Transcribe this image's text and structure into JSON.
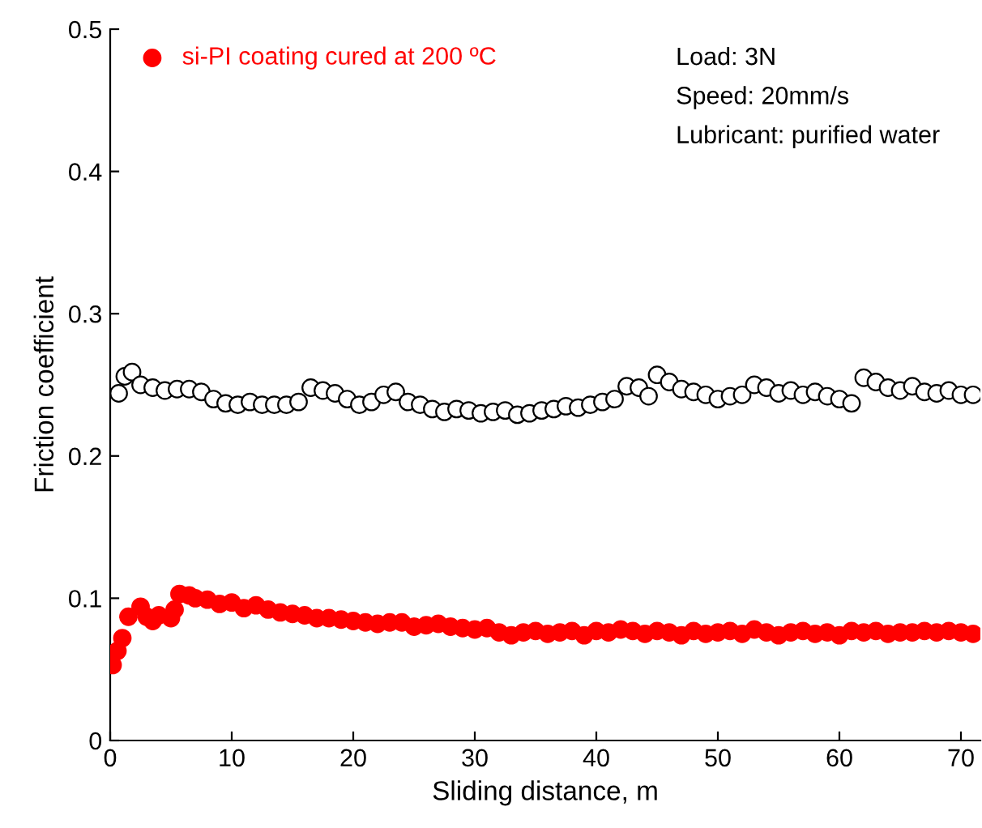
{
  "chart_data": {
    "type": "scatter",
    "xlabel": "Sliding distance, m",
    "ylabel": "Friction coefficient",
    "xlim": [
      0,
      71.6
    ],
    "ylim": [
      0,
      0.5
    ],
    "xticks": [
      0,
      10,
      20,
      30,
      40,
      50,
      60,
      70
    ],
    "yticks": [
      0,
      0.1,
      0.2,
      0.3,
      0.4,
      0.5
    ],
    "grid": false,
    "legend": "top left",
    "marker": "circle",
    "annotations": [
      "Load: 3N",
      "Speed: 20mm/s",
      "Lubricant: purified water"
    ],
    "series": [
      {
        "name": "si-PI coating cured at 200 ºC",
        "color": "#ff0000",
        "x": [
          0.2,
          0.6,
          1,
          1.5,
          2.5,
          3,
          3.5,
          4,
          5,
          5.3,
          5.7,
          6.5,
          7,
          8,
          9,
          10,
          11,
          12,
          13,
          14,
          15,
          16,
          17,
          18,
          19,
          20,
          21,
          22,
          23,
          24,
          25,
          26,
          27,
          28,
          29,
          30,
          31,
          32,
          33,
          34,
          35,
          36,
          37,
          38,
          39,
          40,
          41,
          42,
          43,
          44,
          45,
          46,
          47,
          48,
          49,
          50,
          51,
          52,
          53,
          54,
          55,
          56,
          57,
          58,
          59,
          60,
          61,
          62,
          63,
          64,
          65,
          66,
          67,
          68,
          69,
          70,
          71
        ],
        "values": [
          0.053,
          0.063,
          0.072,
          0.087,
          0.094,
          0.087,
          0.084,
          0.088,
          0.086,
          0.092,
          0.103,
          0.102,
          0.1,
          0.099,
          0.096,
          0.097,
          0.093,
          0.095,
          0.092,
          0.09,
          0.089,
          0.088,
          0.086,
          0.086,
          0.085,
          0.084,
          0.083,
          0.082,
          0.083,
          0.083,
          0.08,
          0.081,
          0.082,
          0.08,
          0.079,
          0.078,
          0.079,
          0.076,
          0.074,
          0.076,
          0.077,
          0.075,
          0.076,
          0.077,
          0.074,
          0.077,
          0.076,
          0.078,
          0.077,
          0.075,
          0.077,
          0.076,
          0.074,
          0.077,
          0.075,
          0.076,
          0.077,
          0.075,
          0.078,
          0.076,
          0.074,
          0.076,
          0.077,
          0.075,
          0.076,
          0.074,
          0.077,
          0.076,
          0.077,
          0.075,
          0.076,
          0.076,
          0.077,
          0.076,
          0.077,
          0.076,
          0.075
        ]
      },
      {
        "color": "#000000",
        "x": [
          0.7,
          1.2,
          1.8,
          2.5,
          3.5,
          4.5,
          5.5,
          6.5,
          7.5,
          8.5,
          9.5,
          10.5,
          11.5,
          12.5,
          13.5,
          14.5,
          15.5,
          16.5,
          17.5,
          18.5,
          19.5,
          20.5,
          21.5,
          22.5,
          23.5,
          24.5,
          25.5,
          26.5,
          27.5,
          28.5,
          29.5,
          30.5,
          31.5,
          32.5,
          33.5,
          34.5,
          35.5,
          36.5,
          37.5,
          38.5,
          39.5,
          40.5,
          41.5,
          42.5,
          43.5,
          44.3,
          45,
          46,
          47,
          48,
          49,
          50,
          51,
          52,
          53,
          54,
          55,
          56,
          57,
          58,
          59,
          60,
          61,
          62,
          63,
          64,
          65,
          66,
          67,
          68,
          69,
          70,
          71
        ],
        "values": [
          0.244,
          0.256,
          0.259,
          0.25,
          0.248,
          0.246,
          0.247,
          0.247,
          0.245,
          0.24,
          0.237,
          0.236,
          0.238,
          0.236,
          0.236,
          0.236,
          0.238,
          0.248,
          0.246,
          0.244,
          0.24,
          0.236,
          0.238,
          0.243,
          0.245,
          0.238,
          0.236,
          0.233,
          0.231,
          0.233,
          0.232,
          0.23,
          0.231,
          0.232,
          0.229,
          0.23,
          0.232,
          0.233,
          0.235,
          0.234,
          0.236,
          0.238,
          0.24,
          0.249,
          0.248,
          0.242,
          0.257,
          0.252,
          0.247,
          0.245,
          0.243,
          0.24,
          0.242,
          0.243,
          0.25,
          0.248,
          0.244,
          0.246,
          0.243,
          0.245,
          0.242,
          0.24,
          0.237,
          0.255,
          0.252,
          0.248,
          0.246,
          0.249,
          0.245,
          0.244,
          0.246,
          0.243,
          0.243
        ]
      }
    ]
  }
}
